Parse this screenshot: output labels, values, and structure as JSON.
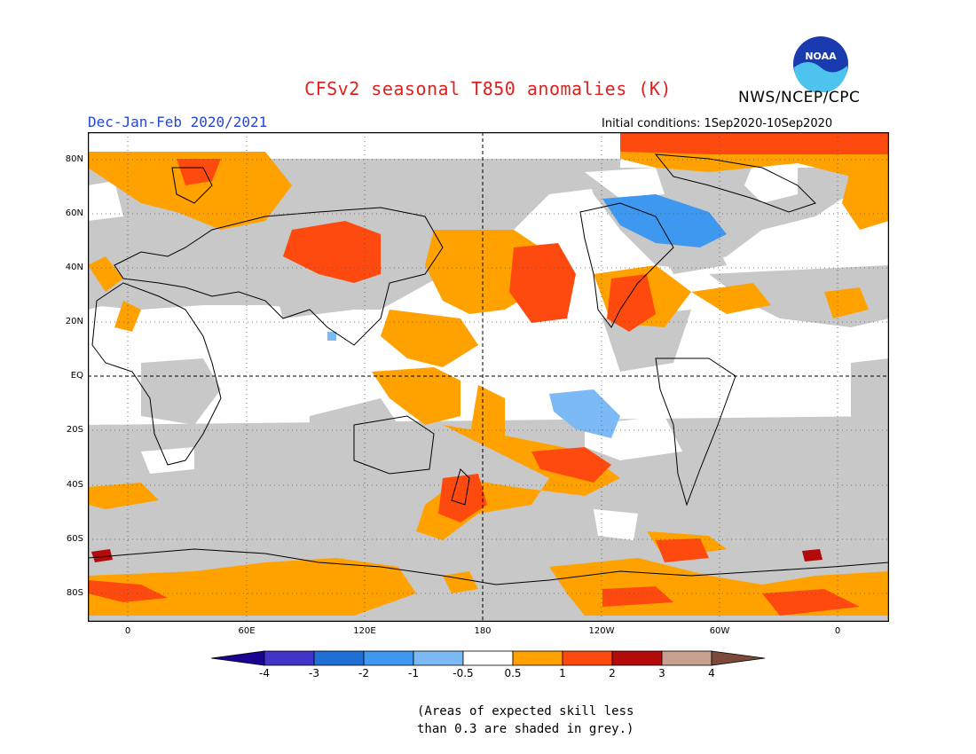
{
  "title": "CFSv2 seasonal T850 anomalies (K)",
  "agency": "NWS/NCEP/CPC",
  "logo_text": "NOAA",
  "season": "Dec-Jan-Feb 2020/2021",
  "initial_conditions": "Initial conditions: 1Sep2020-10Sep2020",
  "lat_labels": [
    "80N",
    "60N",
    "40N",
    "20N",
    "EQ",
    "20S",
    "40S",
    "60S",
    "80S"
  ],
  "lon_labels": [
    "0",
    "60E",
    "120E",
    "180",
    "120W",
    "60W",
    "0"
  ],
  "colorbar": {
    "labels": [
      "-4",
      "-3",
      "-2",
      "-1",
      "-0.5",
      "0.5",
      "1",
      "2",
      "3",
      "4"
    ],
    "colors": [
      "#1b0391",
      "#4234c8",
      "#1f6fd4",
      "#3f98ef",
      "#7cbaf5",
      "#ffffff",
      "#ffa200",
      "#ff4a0f",
      "#b30a0a",
      "#c8a090",
      "#7b4a3a"
    ]
  },
  "note": [
    "(Areas of expected skill less",
    "than 0.3 are shaded in grey.)"
  ],
  "colors": {
    "grey": "#c8c8c8",
    "white": "#ffffff",
    "orange": "#ffa200",
    "red_orange": "#ff4a0f",
    "dark_red": "#b30a0a",
    "light_blue": "#7cbaf5",
    "mid_blue": "#3f98ef"
  }
}
